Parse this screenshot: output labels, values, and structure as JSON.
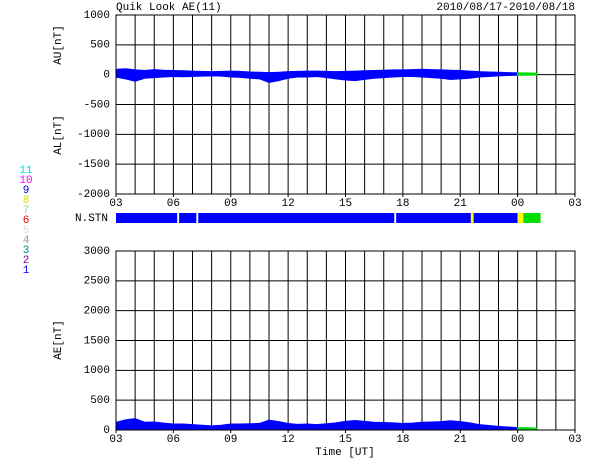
{
  "chart_data": [
    {
      "type": "area",
      "title": "Quik Look AE(11)",
      "subtitle": "2010/08/17-2010/08/18",
      "ylabels": [
        "AU[nT]",
        "AL[nT]"
      ],
      "x": [
        3,
        3.5,
        4,
        4.5,
        5,
        5.5,
        6,
        6.5,
        7,
        7.5,
        8,
        8.5,
        9,
        9.5,
        10,
        10.5,
        11,
        11.5,
        12,
        12.5,
        13,
        13.5,
        14,
        14.5,
        15,
        15.5,
        16,
        16.5,
        17,
        17.5,
        18,
        18.5,
        19,
        19.5,
        20,
        20.5,
        21,
        21.5,
        22,
        22.5,
        23,
        23.5,
        24,
        24.5,
        25
      ],
      "series": [
        {
          "color": "#0000ff",
          "values": [
            90,
            100,
            80,
            70,
            85,
            75,
            70,
            65,
            60,
            55,
            50,
            55,
            60,
            55,
            45,
            40,
            35,
            40,
            50,
            55,
            60,
            60,
            55,
            50,
            55,
            60,
            65,
            70,
            75,
            80,
            80,
            85,
            90,
            85,
            80,
            75,
            70,
            60,
            50,
            45,
            40,
            35,
            30,
            null,
            null
          ]
        },
        {
          "color": "#0000ff",
          "values": [
            -40,
            -70,
            -110,
            -60,
            -50,
            -40,
            -30,
            -35,
            -30,
            -25,
            -20,
            -25,
            -40,
            -45,
            -60,
            -70,
            -130,
            -100,
            -60,
            -40,
            -40,
            -30,
            -50,
            -70,
            -90,
            -100,
            -80,
            -60,
            -50,
            -40,
            -30,
            -30,
            -40,
            -50,
            -60,
            -80,
            -70,
            -60,
            -40,
            -30,
            -20,
            -15,
            -10,
            null,
            null
          ]
        },
        {
          "color": "#00dd00",
          "values": [
            null,
            null,
            null,
            null,
            null,
            null,
            null,
            null,
            null,
            null,
            null,
            null,
            null,
            null,
            null,
            null,
            null,
            null,
            null,
            null,
            null,
            null,
            null,
            null,
            null,
            null,
            null,
            null,
            null,
            null,
            null,
            null,
            null,
            null,
            null,
            null,
            null,
            null,
            null,
            null,
            null,
            null,
            30,
            30,
            25
          ]
        },
        {
          "color": "#00dd00",
          "values": [
            null,
            null,
            null,
            null,
            null,
            null,
            null,
            null,
            null,
            null,
            null,
            null,
            null,
            null,
            null,
            null,
            null,
            null,
            null,
            null,
            null,
            null,
            null,
            null,
            null,
            null,
            null,
            null,
            null,
            null,
            null,
            null,
            null,
            null,
            null,
            null,
            null,
            null,
            null,
            null,
            null,
            null,
            -10,
            -10,
            -5
          ]
        }
      ],
      "xlim": [
        3,
        27
      ],
      "xticks": [
        {
          "value": 3,
          "label": "03"
        },
        {
          "value": 6,
          "label": "06"
        },
        {
          "value": 9,
          "label": "09"
        },
        12,
        15,
        18,
        21,
        {
          "value": 24,
          "label": "00"
        },
        {
          "value": 27,
          "label": "03"
        }
      ],
      "x_minor_step": 1,
      "ylim": [
        -2000,
        1000
      ],
      "yticks": [
        -2000,
        -1500,
        -1000,
        -500,
        0,
        500,
        1000
      ],
      "grid": true
    },
    {
      "type": "area",
      "ylabel": "AE[nT]",
      "xlabel": "Time [UT]",
      "x": [
        3,
        3.5,
        4,
        4.5,
        5,
        5.5,
        6,
        6.5,
        7,
        7.5,
        8,
        8.5,
        9,
        9.5,
        10,
        10.5,
        11,
        11.5,
        12,
        12.5,
        13,
        13.5,
        14,
        14.5,
        15,
        15.5,
        16,
        16.5,
        17,
        17.5,
        18,
        18.5,
        19,
        19.5,
        20,
        20.5,
        21,
        21.5,
        22,
        22.5,
        23,
        23.5,
        24,
        24.5,
        25
      ],
      "series": [
        {
          "color": "#0000ff",
          "values": [
            130,
            170,
            190,
            130,
            135,
            115,
            100,
            100,
            90,
            80,
            70,
            80,
            100,
            100,
            105,
            110,
            165,
            140,
            110,
            95,
            100,
            90,
            105,
            120,
            145,
            160,
            145,
            130,
            125,
            120,
            110,
            115,
            130,
            135,
            140,
            155,
            140,
            120,
            90,
            75,
            60,
            50,
            40,
            null,
            null
          ]
        },
        {
          "color": "#00dd00",
          "values": [
            null,
            null,
            null,
            null,
            null,
            null,
            null,
            null,
            null,
            null,
            null,
            null,
            null,
            null,
            null,
            null,
            null,
            null,
            null,
            null,
            null,
            null,
            null,
            null,
            null,
            null,
            null,
            null,
            null,
            null,
            null,
            null,
            null,
            null,
            null,
            null,
            null,
            null,
            null,
            null,
            null,
            null,
            40,
            40,
            30
          ]
        }
      ],
      "xlim": [
        3,
        27
      ],
      "xticks": [
        {
          "value": 3,
          "label": "03"
        },
        {
          "value": 6,
          "label": "06"
        },
        {
          "value": 9,
          "label": "09"
        },
        12,
        15,
        18,
        21,
        {
          "value": 24,
          "label": "00"
        },
        {
          "value": 27,
          "label": "03"
        }
      ],
      "x_minor_step": 1,
      "ylim": [
        0,
        3000
      ],
      "yticks": [
        0,
        500,
        1000,
        1500,
        2000,
        2500,
        3000
      ],
      "grid": true
    }
  ],
  "nstn": {
    "label": "N.STN",
    "segments": [
      {
        "x0": 3,
        "x1": 24,
        "color": "#0000ff"
      },
      {
        "x0": 6.2,
        "x1": 6.3,
        "color": "#ffffff"
      },
      {
        "x0": 7.2,
        "x1": 7.3,
        "color": "#ffffff"
      },
      {
        "x0": 17.55,
        "x1": 17.65,
        "color": "#ffffff"
      },
      {
        "x0": 21.55,
        "x1": 21.7,
        "color": "#ffff00"
      },
      {
        "x0": 24,
        "x1": 24.3,
        "color": "#ffff00"
      },
      {
        "x0": 24.3,
        "x1": 25.2,
        "color": "#00dd00"
      }
    ]
  },
  "station_legend": [
    {
      "label": "11",
      "color": "#00dddd"
    },
    {
      "label": "10",
      "color": "#ff00ff"
    },
    {
      "label": "9",
      "color": "#0000cc"
    },
    {
      "label": "8",
      "color": "#dddd00"
    },
    {
      "label": "7",
      "color": "#88dd88"
    },
    {
      "label": "6",
      "color": "#ff0000"
    },
    {
      "label": "5",
      "color": "#dddddd"
    },
    {
      "label": "4",
      "color": "#999999"
    },
    {
      "label": "3",
      "color": "#008888"
    },
    {
      "label": "2",
      "color": "#880088"
    },
    {
      "label": "1",
      "color": "#0000ff"
    }
  ]
}
